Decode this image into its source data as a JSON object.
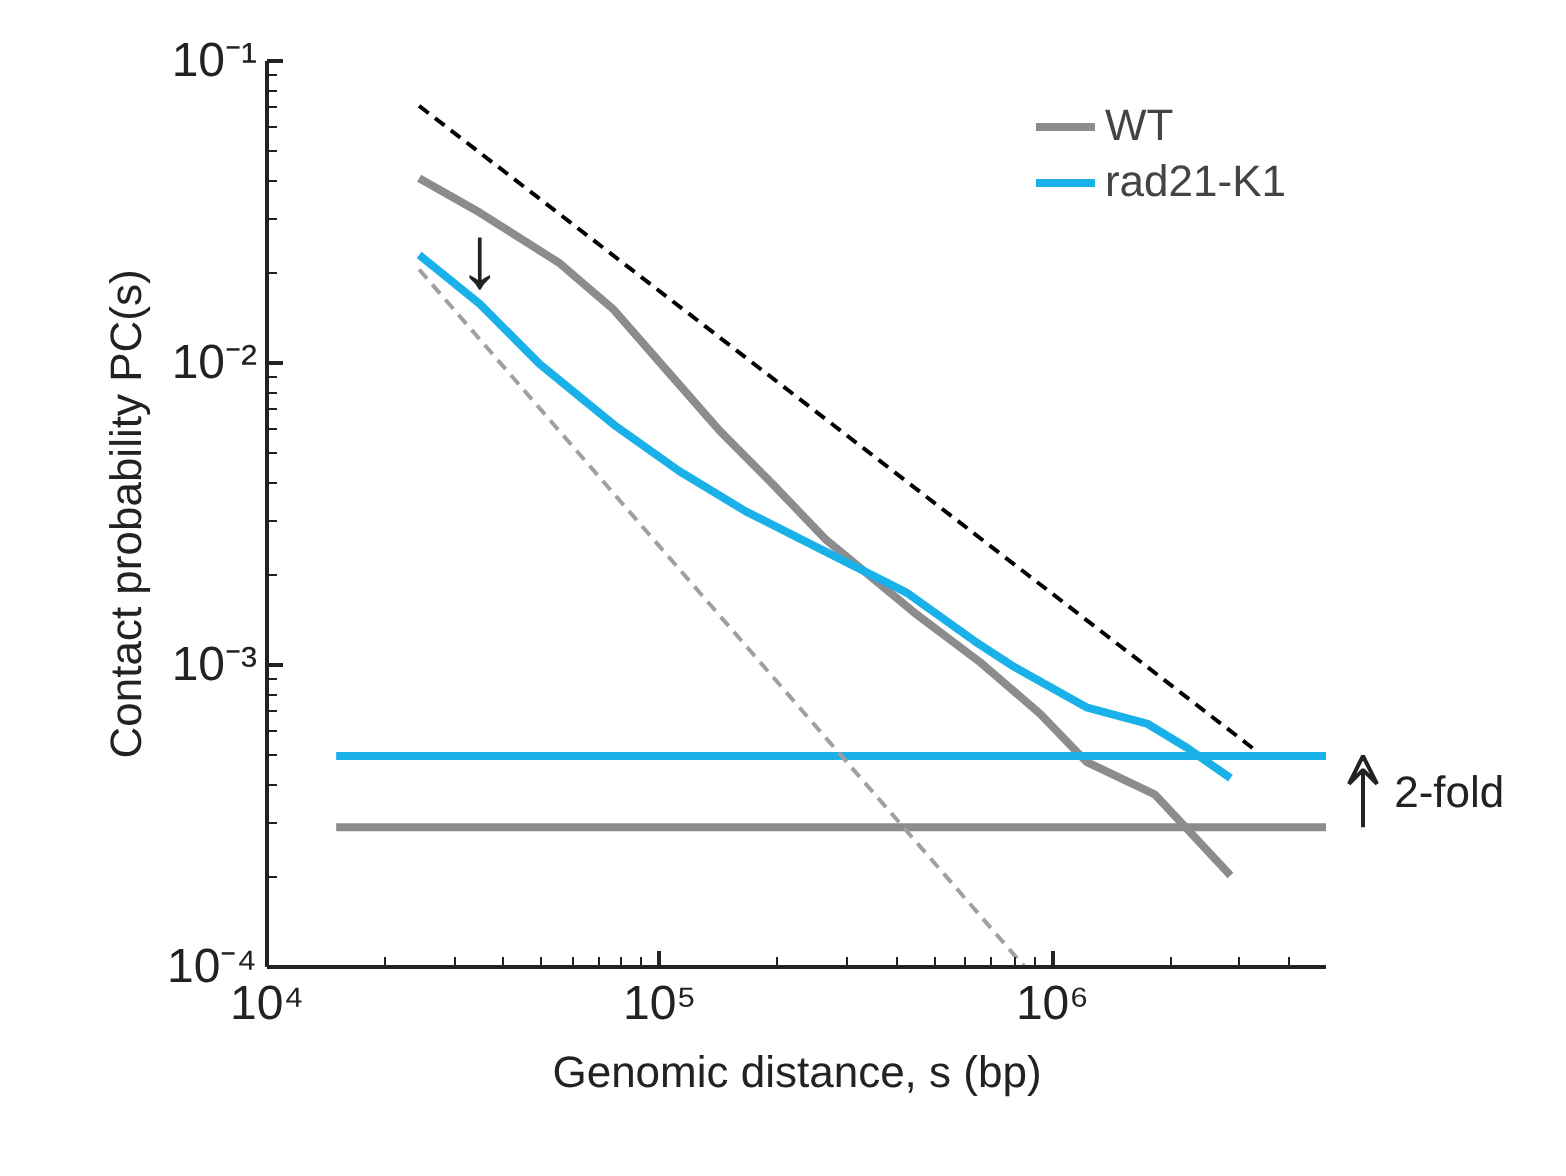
{
  "chart_data": {
    "type": "line",
    "xlabel": "Genomic distance, s (bp)",
    "ylabel": "Contact probability PC(s)",
    "log": "xy",
    "xlim": [
      10000,
      5000000
    ],
    "ylim": [
      0.0001,
      0.1
    ],
    "xticks": [
      {
        "value": 10000,
        "label": "10⁴"
      },
      {
        "value": 100000,
        "label": "10⁵"
      },
      {
        "value": 1000000,
        "label": "10⁶"
      }
    ],
    "yticks": [
      {
        "value": 0.0001,
        "label": "10⁻⁴"
      },
      {
        "value": 0.001,
        "label": "10⁻³"
      },
      {
        "value": 0.01,
        "label": "10⁻²"
      },
      {
        "value": 0.1,
        "label": "10⁻¹"
      }
    ],
    "grid": false,
    "legend": "top right",
    "marker": "none",
    "series": [
      {
        "name": "WT",
        "color": "#8c8c8c",
        "x": [
          24400,
          34800,
          55600,
          76400,
          104000,
          142000,
          195000,
          265000,
          445000,
          655000,
          930000,
          1220000,
          1820000,
          2200000,
          2840000
        ],
        "values": [
          0.0409,
          0.0315,
          0.0214,
          0.015,
          0.00948,
          0.00597,
          0.00394,
          0.0026,
          0.00149,
          0.00102,
          0.00069,
          0.000478,
          0.000373,
          0.000287,
          0.000201
        ]
      },
      {
        "name": "rad21-K1",
        "color": "#1ab0e8",
        "x": [
          24400,
          34800,
          49400,
          76400,
          112000,
          166000,
          265000,
          424000,
          633000,
          800000,
          1220000,
          1740000,
          2200000,
          2840000
        ],
        "values": [
          0.0228,
          0.0157,
          0.00993,
          0.00625,
          0.00439,
          0.00322,
          0.00237,
          0.00174,
          0.0012,
          0.000984,
          0.000724,
          0.00064,
          0.000532,
          0.000422
        ]
      },
      {
        "color": "#1ab0e8",
        "x": [
          15000,
          5000000
        ],
        "values": [
          0.0005,
          0.0005
        ]
      },
      {
        "color": "#8c8c8c",
        "x": [
          15000,
          5000000
        ],
        "values": [
          0.00029,
          0.00029
        ]
      },
      {
        "color": "#000000",
        "line_style": "dashed",
        "x": [
          24400,
          3300000
        ],
        "values": [
          0.071,
          0.00052
        ]
      },
      {
        "color": "#a0a0a0",
        "line_style": "dashed",
        "x": [
          24400,
          850000
        ],
        "values": [
          0.0204,
          0.0001
        ]
      }
    ],
    "annotations": [
      "↓",
      "2-fold"
    ]
  }
}
